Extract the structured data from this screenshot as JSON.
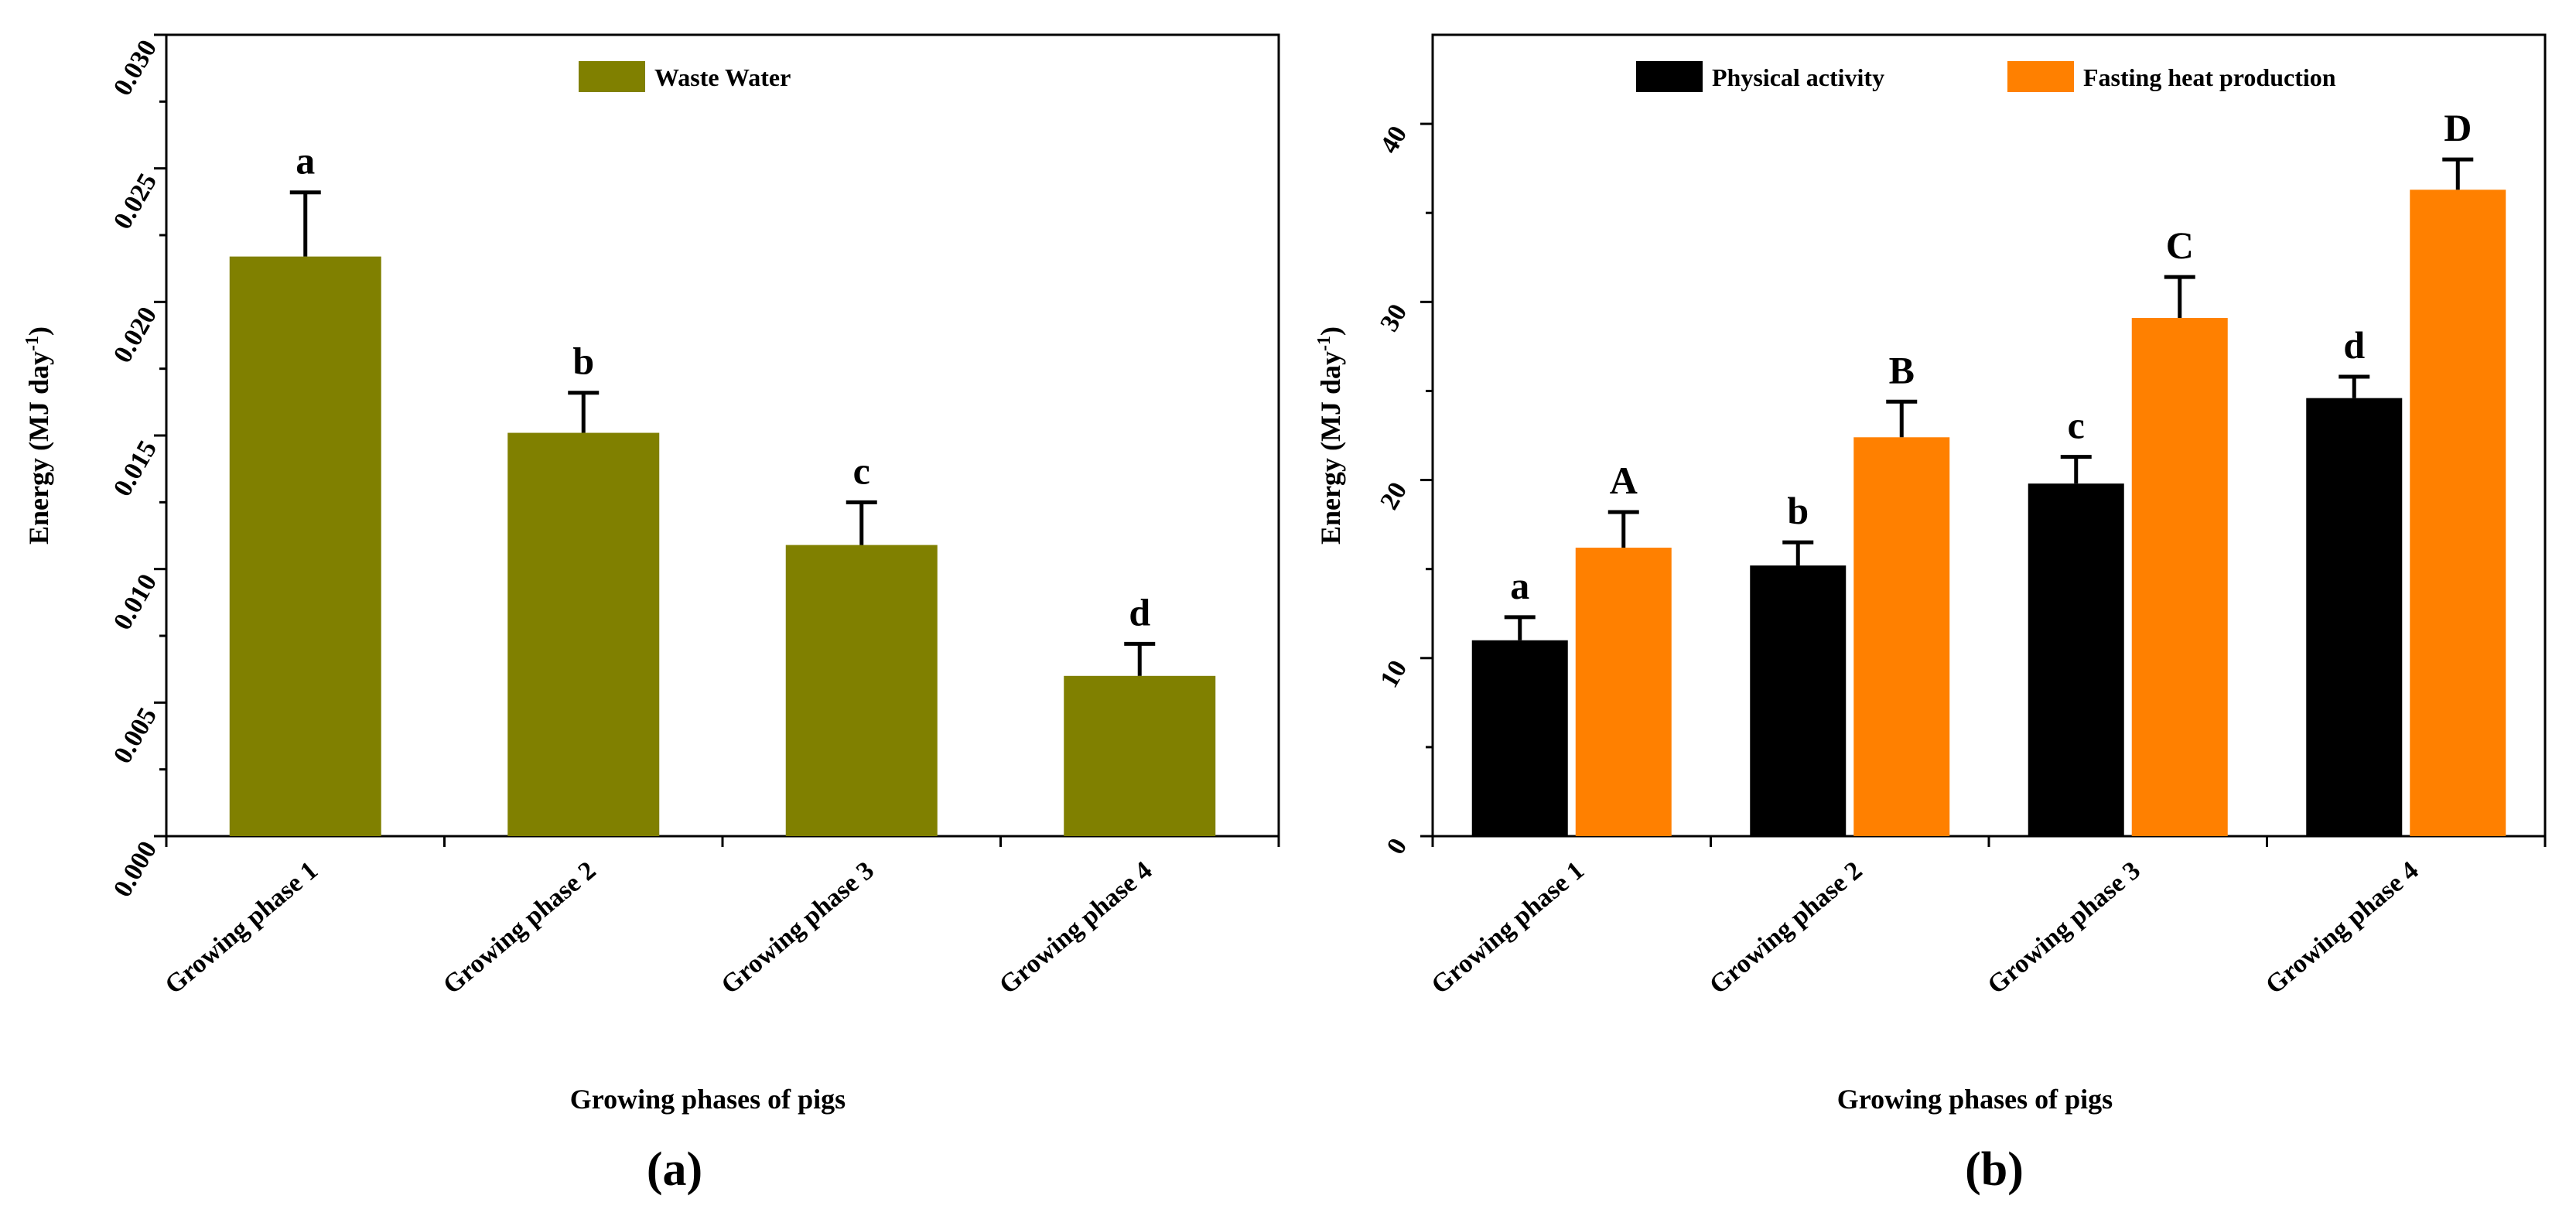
{
  "chart_data": [
    {
      "type": "bar",
      "panel_label": "(a)",
      "categories": [
        "Growing phase 1",
        "Growing phase 2",
        "Growing phase 3",
        "Growing phase 4"
      ],
      "series": [
        {
          "name": "Waste Water",
          "color": "#808000",
          "values": [
            0.0217,
            0.0151,
            0.0109,
            0.006
          ],
          "errors": [
            0.0024,
            0.0015,
            0.0016,
            0.0012
          ],
          "labels": [
            "a",
            "b",
            "c",
            "d"
          ]
        }
      ],
      "xlabel": "Growing phases of pigs",
      "ylabel": "Energy (MJ day",
      "ylabel_sup": "-1",
      "ylabel_end": ")",
      "ylim": [
        0,
        0.03
      ],
      "yticks": [
        0,
        0.005,
        0.01,
        0.015,
        0.02,
        0.025,
        0.03
      ],
      "ytick_labels": [
        "0.000",
        "0.005",
        "0.010",
        "0.015",
        "0.020",
        "0.025",
        "0.030"
      ],
      "legend_position": "top-center",
      "grid": false
    },
    {
      "type": "bar",
      "panel_label": "(b)",
      "categories": [
        "Growing phase 1",
        "Growing phase 2",
        "Growing phase 3",
        "Growing phase 4"
      ],
      "series": [
        {
          "name": "Physical activity",
          "color": "#000000",
          "values": [
            11.0,
            15.2,
            19.8,
            24.6
          ],
          "errors": [
            1.3,
            1.3,
            1.5,
            1.2
          ],
          "labels": [
            "a",
            "b",
            "c",
            "d"
          ]
        },
        {
          "name": "Fasting heat production",
          "color": "#FF8000",
          "values": [
            16.2,
            22.4,
            29.1,
            36.3
          ],
          "errors": [
            2.0,
            2.0,
            2.3,
            1.7
          ],
          "labels": [
            "A",
            "B",
            "C",
            "D"
          ]
        }
      ],
      "xlabel": "Growing phases of pigs",
      "ylabel": "Energy (MJ day",
      "ylabel_sup": "-1",
      "ylabel_end": ")",
      "ylim": [
        0,
        45
      ],
      "yticks": [
        0,
        10,
        20,
        30,
        40
      ],
      "ytick_labels": [
        "0",
        "10",
        "20",
        "30",
        "40"
      ],
      "legend_position": "top-center",
      "grid": false
    }
  ]
}
